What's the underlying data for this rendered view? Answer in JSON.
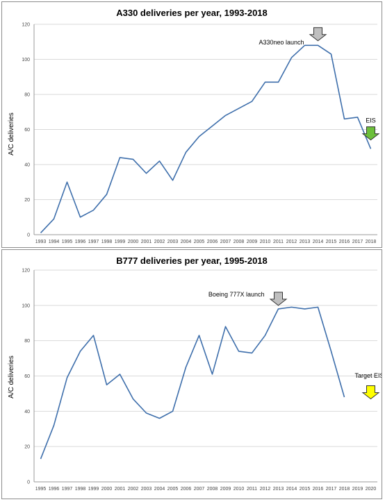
{
  "chart_data": [
    {
      "type": "line",
      "title": "A330 deliveries per year, 1993-2018",
      "xlabel": "",
      "ylabel": "A/C deliveries",
      "ylim": [
        0,
        120
      ],
      "yticks": [
        0,
        20,
        40,
        60,
        80,
        100,
        120
      ],
      "grid": "horizontal",
      "categories": [
        "1993",
        "1994",
        "1995",
        "1996",
        "1997",
        "1998",
        "1999",
        "2000",
        "2001",
        "2002",
        "2003",
        "2004",
        "2005",
        "2006",
        "2007",
        "2008",
        "2009",
        "2010",
        "2011",
        "2012",
        "2013",
        "2014",
        "2015",
        "2016",
        "2017",
        "2018"
      ],
      "series": [
        {
          "values": [
            1,
            9,
            30,
            10,
            14,
            23,
            44,
            43,
            35,
            42,
            31,
            47,
            56,
            62,
            68,
            72,
            76,
            87,
            87,
            101,
            108,
            108,
            103,
            66,
            67,
            49
          ],
          "color": "#3d6eab"
        }
      ],
      "annotations": [
        {
          "text": "A330neo launch",
          "at": "2014",
          "arrow_color": "#bfbfbf"
        },
        {
          "text": "EIS",
          "at": "2018",
          "arrow_color": "#6cbf3a"
        }
      ]
    },
    {
      "type": "line",
      "title": "B777 deliveries per year, 1995-2018",
      "xlabel": "",
      "ylabel": "A/C deliveries",
      "ylim": [
        0,
        120
      ],
      "yticks": [
        0,
        20,
        40,
        60,
        80,
        100,
        120
      ],
      "grid": "horizontal",
      "categories": [
        "1995",
        "1996",
        "1997",
        "1998",
        "1999",
        "2000",
        "2001",
        "2002",
        "2003",
        "2004",
        "2005",
        "2006",
        "2007",
        "2008",
        "2009",
        "2010",
        "2011",
        "2012",
        "2013",
        "2014",
        "2015",
        "2016",
        "2017",
        "2018",
        "2019",
        "2020"
      ],
      "series": [
        {
          "values": [
            13,
            32,
            59,
            74,
            83,
            55,
            61,
            47,
            39,
            36,
            40,
            65,
            83,
            61,
            88,
            74,
            73,
            83,
            98,
            99,
            98,
            99,
            74,
            48,
            null,
            null
          ],
          "color": "#3d6eab"
        }
      ],
      "annotations": [
        {
          "text": "Boeing 777X launch",
          "at": "2013",
          "arrow_color": "#bfbfbf"
        },
        {
          "text": "Target EIS",
          "at": "2020",
          "arrow_color": "#ffff00"
        }
      ]
    }
  ]
}
